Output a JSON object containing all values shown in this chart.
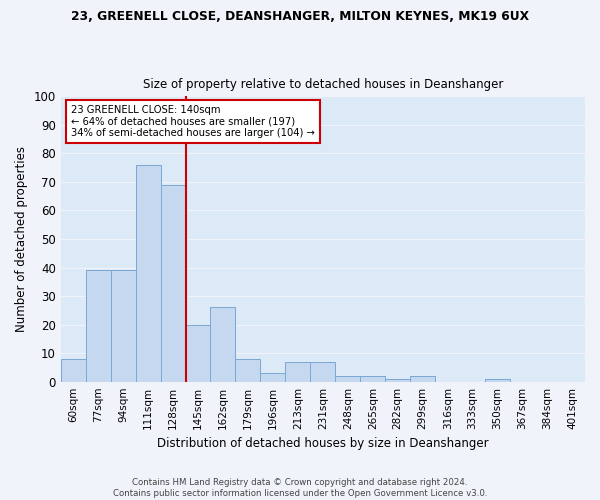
{
  "title": "23, GREENELL CLOSE, DEANSHANGER, MILTON KEYNES, MK19 6UX",
  "subtitle": "Size of property relative to detached houses in Deanshanger",
  "xlabel": "Distribution of detached houses by size in Deanshanger",
  "ylabel": "Number of detached properties",
  "categories": [
    "60sqm",
    "77sqm",
    "94sqm",
    "111sqm",
    "128sqm",
    "145sqm",
    "162sqm",
    "179sqm",
    "196sqm",
    "213sqm",
    "231sqm",
    "248sqm",
    "265sqm",
    "282sqm",
    "299sqm",
    "316sqm",
    "333sqm",
    "350sqm",
    "367sqm",
    "384sqm",
    "401sqm"
  ],
  "values": [
    8,
    39,
    39,
    76,
    69,
    20,
    26,
    8,
    3,
    7,
    7,
    2,
    2,
    1,
    2,
    0,
    0,
    1,
    0,
    0,
    0
  ],
  "bar_color": "#c5d8f0",
  "bar_edge_color": "#7aa8d4",
  "vline_x_index": 4.5,
  "annotation_line1": "23 GREENELL CLOSE: 140sqm",
  "annotation_line2": "← 64% of detached houses are smaller (197)",
  "annotation_line3": "34% of semi-detached houses are larger (104) →",
  "annotation_box_facecolor": "#ffffff",
  "annotation_box_edgecolor": "#cc0000",
  "vline_color": "#cc0000",
  "ylim": [
    0,
    100
  ],
  "yticks": [
    0,
    10,
    20,
    30,
    40,
    50,
    60,
    70,
    80,
    90,
    100
  ],
  "footer1": "Contains HM Land Registry data © Crown copyright and database right 2024.",
  "footer2": "Contains public sector information licensed under the Open Government Licence v3.0.",
  "bg_color": "#dce9f7",
  "grid_color": "#f0f4fa",
  "fig_facecolor": "#f0f4fa"
}
